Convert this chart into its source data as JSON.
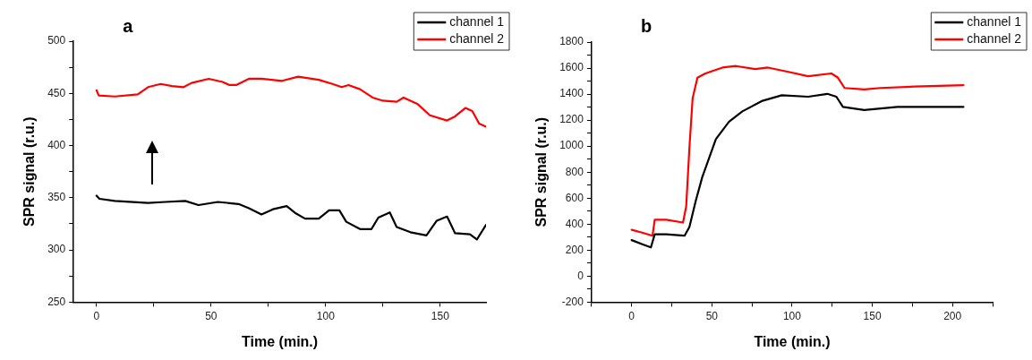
{
  "chart_data": [
    {
      "type": "line",
      "title": "a",
      "xlabel": "Time (min.)",
      "ylabel": "SPR signal (r.u.)",
      "xlim": [
        -10,
        170
      ],
      "ylim": [
        250,
        500
      ],
      "xticks": [
        0,
        {
          "value": 25,
          "label": null
        },
        50,
        {
          "value": 75,
          "label": null
        },
        100,
        {
          "value": 125,
          "label": null
        },
        150
      ],
      "yticks": [
        250,
        {
          "value": 275,
          "label": null
        },
        300,
        {
          "value": 325,
          "label": null
        },
        350,
        {
          "value": 375,
          "label": null
        },
        400,
        {
          "value": 425,
          "label": null
        },
        450,
        {
          "value": 475,
          "label": null
        },
        500
      ],
      "legend": "top right",
      "grid": false,
      "marker": "none",
      "line_style": "solid",
      "series": [
        {
          "name": "channel 1",
          "color": "#000000",
          "x": [
            0,
            1.3,
            8,
            22.5,
            30,
            38.7,
            44.5,
            53,
            62,
            66.5,
            72,
            77,
            83,
            87,
            91,
            97,
            101.5,
            106,
            109,
            115,
            120,
            123,
            128,
            131,
            137,
            144,
            148.5,
            153,
            156.5,
            163,
            166,
            170
          ],
          "values": [
            352,
            349,
            347,
            345,
            346,
            347,
            343,
            346,
            344,
            340,
            334,
            339,
            342,
            335,
            330,
            330,
            338,
            338,
            327,
            320,
            320,
            331,
            336,
            322,
            317,
            314,
            328,
            332,
            316,
            315,
            310,
            324
          ]
        },
        {
          "name": "channel 2",
          "color": "#ff0000",
          "x": [
            0,
            1,
            8,
            18,
            22.5,
            28,
            33,
            38,
            41.5,
            49,
            55,
            58,
            61,
            66.5,
            72,
            81,
            88,
            97,
            103,
            107,
            110,
            115,
            120.5,
            125,
            131,
            134,
            140,
            145.5,
            153,
            156.5,
            161,
            164,
            167,
            170
          ],
          "values": [
            453,
            448,
            447,
            449,
            456,
            459,
            457,
            456,
            460,
            464,
            461,
            458,
            458,
            464,
            464,
            462,
            466,
            463,
            459,
            456,
            458,
            454,
            446,
            443,
            442,
            446,
            440,
            429,
            424,
            428,
            436,
            433,
            421,
            418
          ]
        }
      ]
    },
    {
      "type": "line",
      "title": "b",
      "xlabel": "Time (min.)",
      "ylabel": "SPR signal (r.u.)",
      "xlim": [
        -25,
        225
      ],
      "ylim": [
        -200,
        1800
      ],
      "xticks": [
        {
          "value": -25,
          "label": null
        },
        0,
        {
          "value": 25,
          "label": null
        },
        50,
        {
          "value": 75,
          "label": null
        },
        100,
        {
          "value": 125,
          "label": null
        },
        150,
        {
          "value": 175,
          "label": null
        },
        200,
        {
          "value": 225,
          "label": null
        }
      ],
      "yticks": [
        -200,
        {
          "value": -100,
          "label": null
        },
        0,
        {
          "value": 100,
          "label": null
        },
        200,
        {
          "value": 300,
          "label": null
        },
        400,
        {
          "value": 500,
          "label": null
        },
        600,
        {
          "value": 700,
          "label": null
        },
        800,
        {
          "value": 900,
          "label": null
        },
        1000,
        {
          "value": 1100,
          "label": null
        },
        1200,
        {
          "value": 1300,
          "label": null
        },
        1400,
        {
          "value": 1500,
          "label": null
        },
        1600,
        {
          "value": 1700,
          "label": null
        },
        1800
      ],
      "legend": "top right",
      "grid": false,
      "marker": "none",
      "line_style": "solid",
      "series": [
        {
          "name": "channel 1",
          "color": "#000000",
          "x": [
            0,
            7,
            12,
            14.4,
            21.6,
            33,
            36,
            40,
            44,
            52.5,
            60.7,
            69,
            81,
            93.6,
            110,
            122,
            127.6,
            131.7,
            145,
            165.6,
            206.8
          ],
          "values": [
            277,
            244,
            221,
            322,
            322,
            311,
            378,
            581,
            761,
            1053,
            1188,
            1267,
            1346,
            1391,
            1380,
            1402,
            1380,
            1301,
            1278,
            1301,
            1301
          ]
        },
        {
          "name": "channel 2",
          "color": "#ff0000",
          "x": [
            0,
            7,
            13,
            14.4,
            21.6,
            32,
            34,
            36,
            38,
            41,
            46,
            56.6,
            65,
            77,
            85,
            97.7,
            110,
            124.5,
            128.6,
            132.7,
            145,
            155,
            176,
            206.8
          ],
          "values": [
            356,
            333,
            311,
            434,
            434,
            412,
            536,
            986,
            1368,
            1526,
            1559,
            1604,
            1616,
            1593,
            1604,
            1571,
            1537,
            1559,
            1526,
            1447,
            1436,
            1447,
            1458,
            1469
          ]
        }
      ]
    }
  ]
}
